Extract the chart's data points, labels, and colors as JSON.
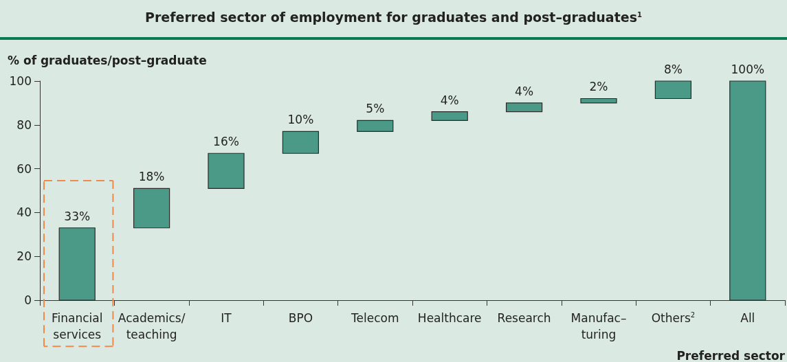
{
  "chart_data": {
    "type": "bar",
    "title": "Preferred sector of employment for graduates and post–graduates$^{1}$",
    "xlabel": "Preferred sector",
    "ylabel": "% of graduates/post–graduate",
    "categories": [
      "Financial\nservices",
      "Academics/\nteaching",
      "IT",
      "BPO",
      "Telecom",
      "Healthcare",
      "Research",
      "Manufac–\nturing",
      "Others$^{2}$",
      "All"
    ],
    "values": [
      33,
      18,
      16,
      10,
      5,
      4,
      4,
      2,
      8,
      100
    ],
    "base": [
      0,
      33,
      51,
      67,
      77,
      82,
      86,
      90,
      92,
      0
    ],
    "value_labels": [
      "33%",
      "18%",
      "16%",
      "10%",
      "5%",
      "4%",
      "4%",
      "2%",
      "8%",
      "100%"
    ],
    "color": "#4a9a87",
    "ylim": [
      0,
      100
    ],
    "yticks": [
      0,
      20,
      40,
      60,
      80,
      100
    ]
  }
}
